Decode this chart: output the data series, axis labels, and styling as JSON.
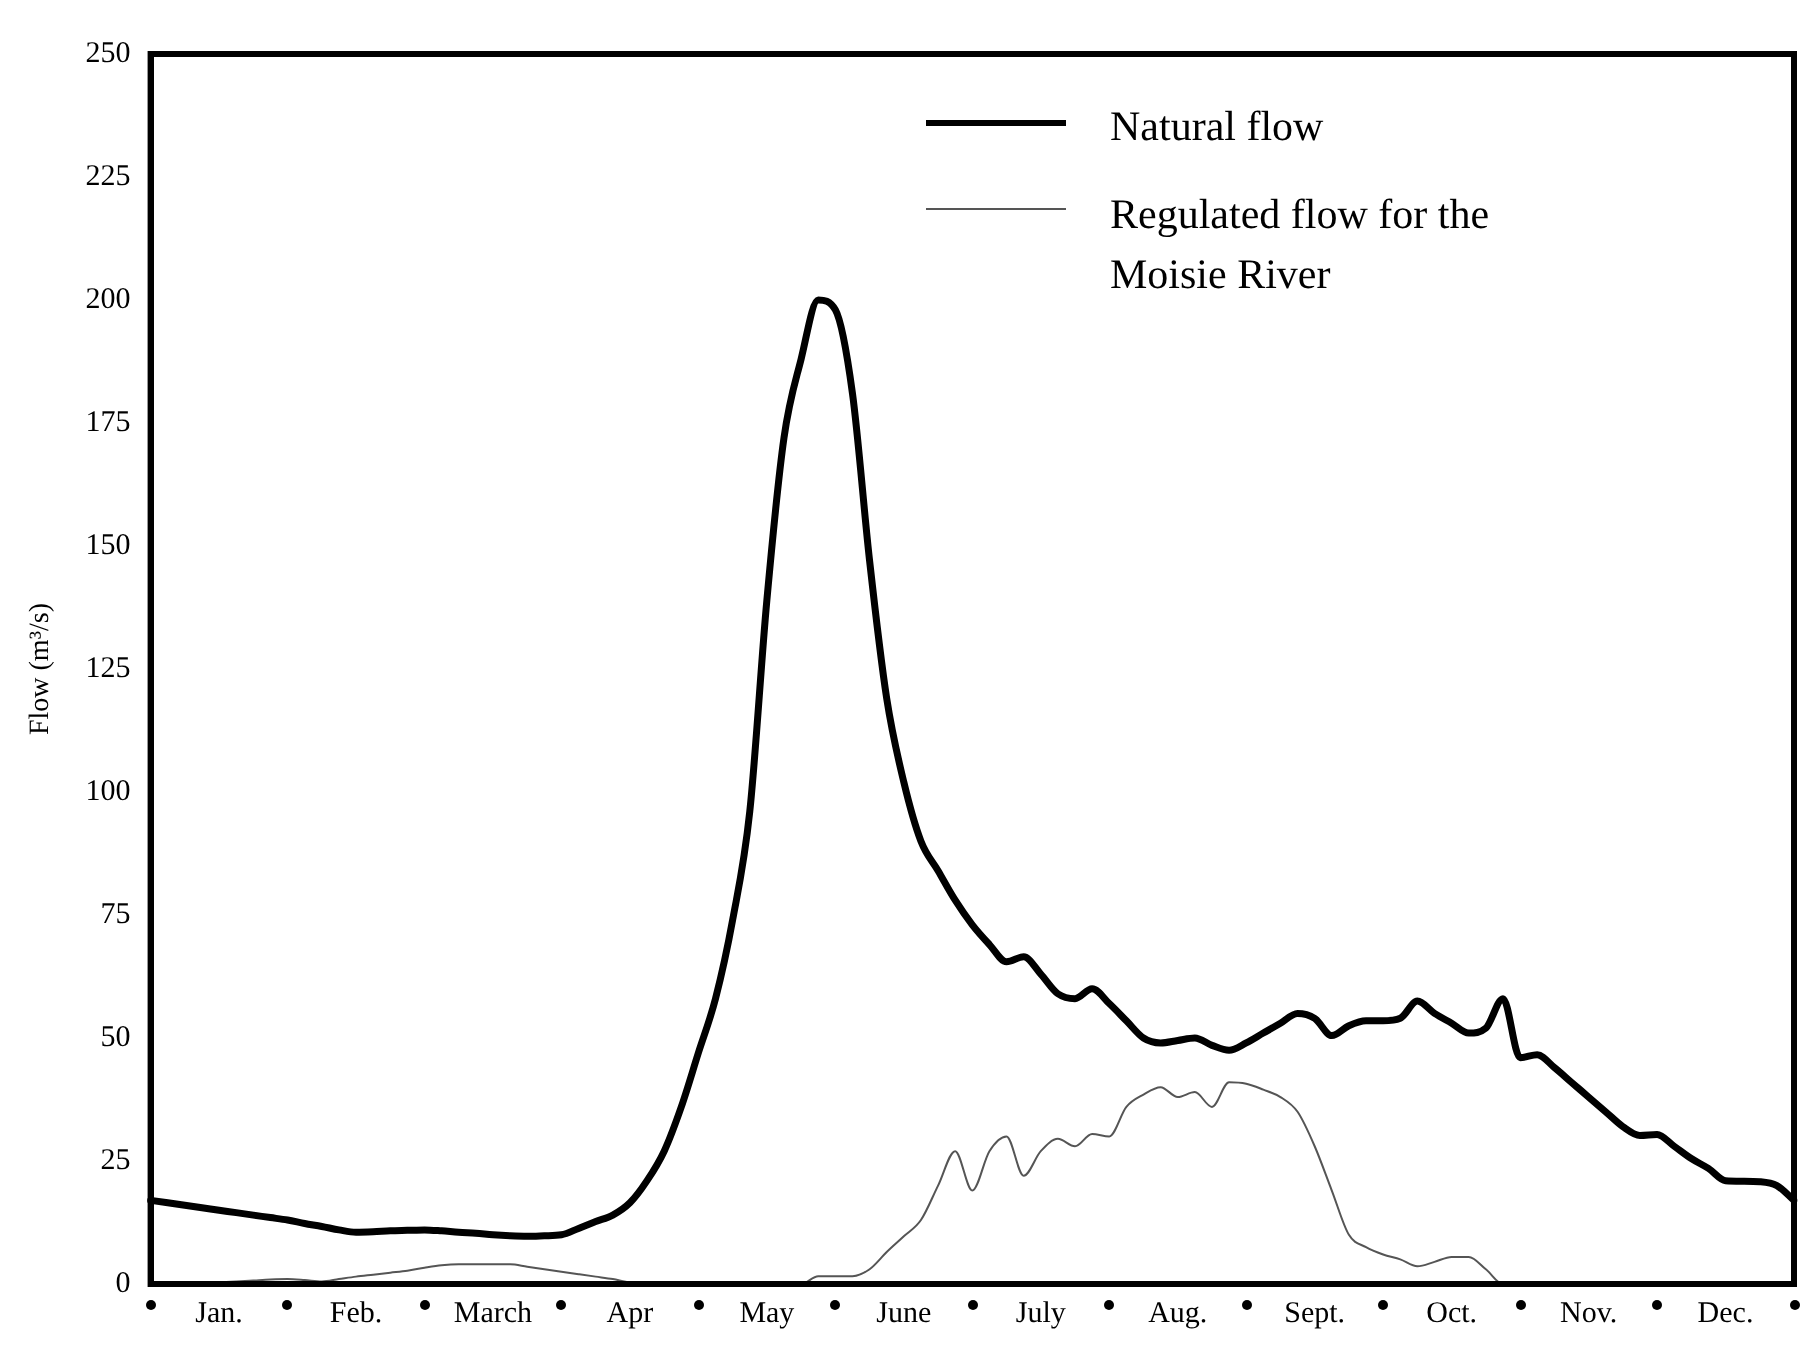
{
  "chart_data": {
    "type": "line",
    "ylabel": "Flow (m³/s)",
    "categories": [
      null,
      null,
      null,
      null,
      "Jan.",
      null,
      null,
      null,
      null,
      null,
      null,
      null,
      "Feb.",
      null,
      null,
      null,
      null,
      null,
      null,
      null,
      "March",
      null,
      null,
      null,
      null,
      null,
      null,
      null,
      "Apr",
      null,
      null,
      null,
      null,
      null,
      null,
      null,
      "May",
      null,
      null,
      null,
      null,
      null,
      null,
      null,
      "June",
      null,
      null,
      null,
      null,
      null,
      null,
      null,
      "July",
      null,
      null,
      null,
      null,
      null,
      null,
      null,
      "Aug.",
      null,
      null,
      null,
      null,
      null,
      null,
      null,
      "Sept.",
      null,
      null,
      null,
      null,
      null,
      null,
      null,
      "Oct.",
      null,
      null,
      null,
      null,
      null,
      null,
      null,
      "Nov.",
      null,
      null,
      null,
      null,
      null,
      null,
      null,
      "Dec.",
      null,
      null,
      null,
      null
    ],
    "ylim": [
      0,
      250
    ],
    "yticks": [
      0,
      25,
      50,
      75,
      100,
      125,
      150,
      175,
      200,
      225,
      250
    ],
    "grid": false,
    "legend": "top right",
    "marker": "none",
    "line_style": "solid",
    "series": [
      {
        "name": "Natural flow",
        "color": "#000000",
        "values": [
          17,
          16.5,
          16,
          15.5,
          15,
          14.5,
          14,
          13.5,
          13,
          12.3,
          11.7,
          11,
          10.5,
          10.6,
          10.8,
          10.9,
          11,
          10.8,
          10.5,
          10.3,
          10,
          9.8,
          9.7,
          9.8,
          10,
          11.3,
          12.7,
          14,
          16.5,
          21,
          27,
          36,
          47,
          58,
          74,
          96,
          139,
          172,
          188,
          200,
          198,
          181,
          147,
          119,
          102,
          90,
          84,
          78,
          73,
          69,
          65.5,
          66.5,
          63,
          59,
          58,
          60,
          57,
          53.5,
          50,
          49,
          49.5,
          50,
          48.5,
          47.5,
          49,
          51,
          53,
          55,
          54,
          50.5,
          52.5,
          53.5,
          53.5,
          54,
          57.5,
          55,
          53,
          51,
          52,
          58,
          46,
          46.6,
          44,
          41,
          38,
          35,
          32,
          30.2,
          30.4,
          28,
          25.5,
          23.5,
          21,
          20.9,
          20.8,
          20,
          17
        ]
      },
      {
        "name": "Regulated flow for the Moisie River",
        "color": "#555555",
        "values": [
          0,
          0.1,
          0.2,
          0.3,
          0.35,
          0.5,
          0.7,
          0.9,
          1,
          0.8,
          0.5,
          1,
          1.5,
          1.9,
          2.3,
          2.7,
          3.3,
          3.8,
          4,
          4,
          4,
          4,
          3.5,
          3,
          2.5,
          2,
          1.5,
          1,
          0.3,
          0.2,
          0.1,
          0,
          0,
          0,
          0,
          0,
          0,
          0,
          0,
          1.6,
          1.6,
          1.6,
          3,
          6.5,
          9.7,
          13,
          20,
          27,
          19,
          27,
          30,
          22,
          27,
          29.5,
          28,
          30.5,
          30,
          36,
          38.5,
          40,
          38,
          39,
          36,
          41,
          40.7,
          39.5,
          38,
          35,
          28,
          19,
          10,
          7.5,
          6,
          5,
          3.6,
          4.5,
          5.5,
          5.5,
          3,
          0,
          0,
          0,
          0,
          0,
          0,
          0,
          0,
          0,
          0,
          0,
          0,
          0,
          0,
          0,
          0,
          0,
          0
        ]
      }
    ]
  }
}
